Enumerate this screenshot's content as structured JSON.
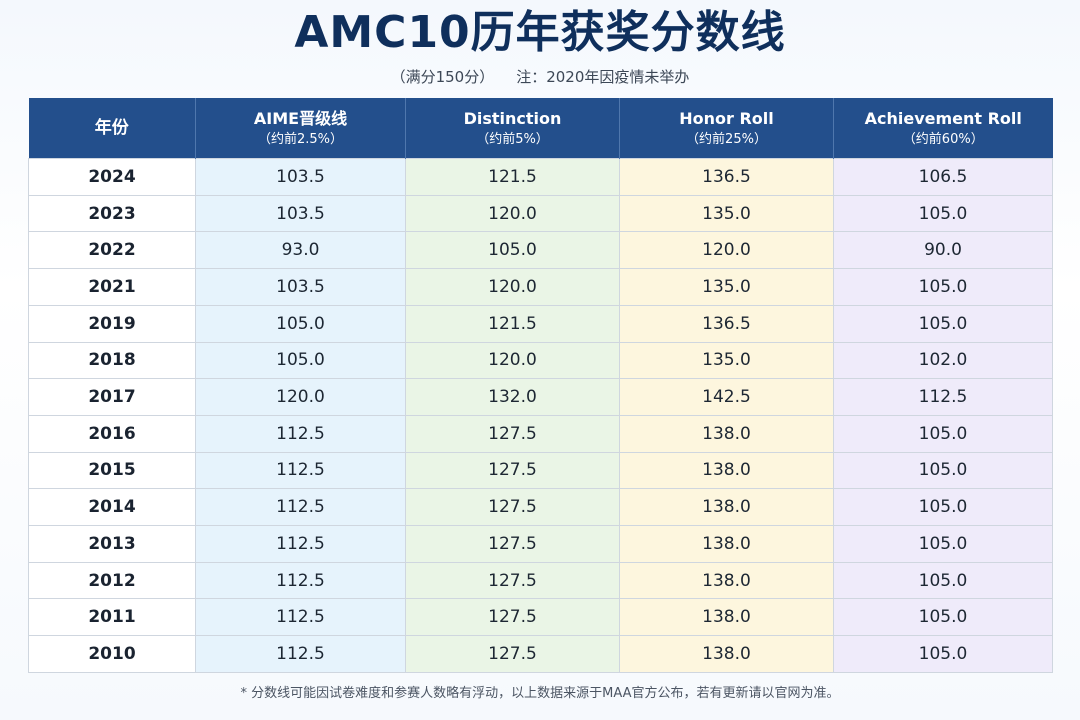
{
  "title": "AMC10历年获奖分数线",
  "subtitle": {
    "full_score": "（满分150分）",
    "note": "注：2020年因疫情未举办"
  },
  "table": {
    "headers": [
      {
        "main": "年份",
        "sub": ""
      },
      {
        "main": "AIME晋级线",
        "sub": "（约前2.5%）"
      },
      {
        "main": "Distinction",
        "sub": "（约前5%）"
      },
      {
        "main": "Honor Roll",
        "sub": "（约前25%）"
      },
      {
        "main": "Achievement Roll",
        "sub": "（约前60%）"
      }
    ],
    "rows": [
      [
        "2024",
        "103.5",
        "121.5",
        "136.5",
        "106.5"
      ],
      [
        "2023",
        "103.5",
        "120.0",
        "135.0",
        "105.0"
      ],
      [
        "2022",
        "93.0",
        "105.0",
        "120.0",
        "90.0"
      ],
      [
        "2021",
        "103.5",
        "120.0",
        "135.0",
        "105.0"
      ],
      [
        "2019",
        "105.0",
        "121.5",
        "136.5",
        "105.0"
      ],
      [
        "2018",
        "105.0",
        "120.0",
        "135.0",
        "102.0"
      ],
      [
        "2017",
        "120.0",
        "132.0",
        "142.5",
        "112.5"
      ],
      [
        "2016",
        "112.5",
        "127.5",
        "138.0",
        "105.0"
      ],
      [
        "2015",
        "112.5",
        "127.5",
        "138.0",
        "105.0"
      ],
      [
        "2014",
        "112.5",
        "127.5",
        "138.0",
        "105.0"
      ],
      [
        "2013",
        "112.5",
        "127.5",
        "138.0",
        "105.0"
      ],
      [
        "2012",
        "112.5",
        "127.5",
        "138.0",
        "105.0"
      ],
      [
        "2011",
        "112.5",
        "127.5",
        "138.0",
        "105.0"
      ],
      [
        "2010",
        "112.5",
        "127.5",
        "138.0",
        "105.0"
      ]
    ]
  },
  "footnote": "* 分数线可能因试卷难度和参赛人数略有浮动，以上数据来源于MAA官方公布，若有更新请以官网为准。",
  "colors": {
    "header_bg": "#234f8c",
    "title": "#0f2f5c",
    "aime_col": "#e6f3fc",
    "distinction_col": "#eaf5e6",
    "honor_col": "#fdf6de",
    "achievement_col": "#efebfa"
  }
}
